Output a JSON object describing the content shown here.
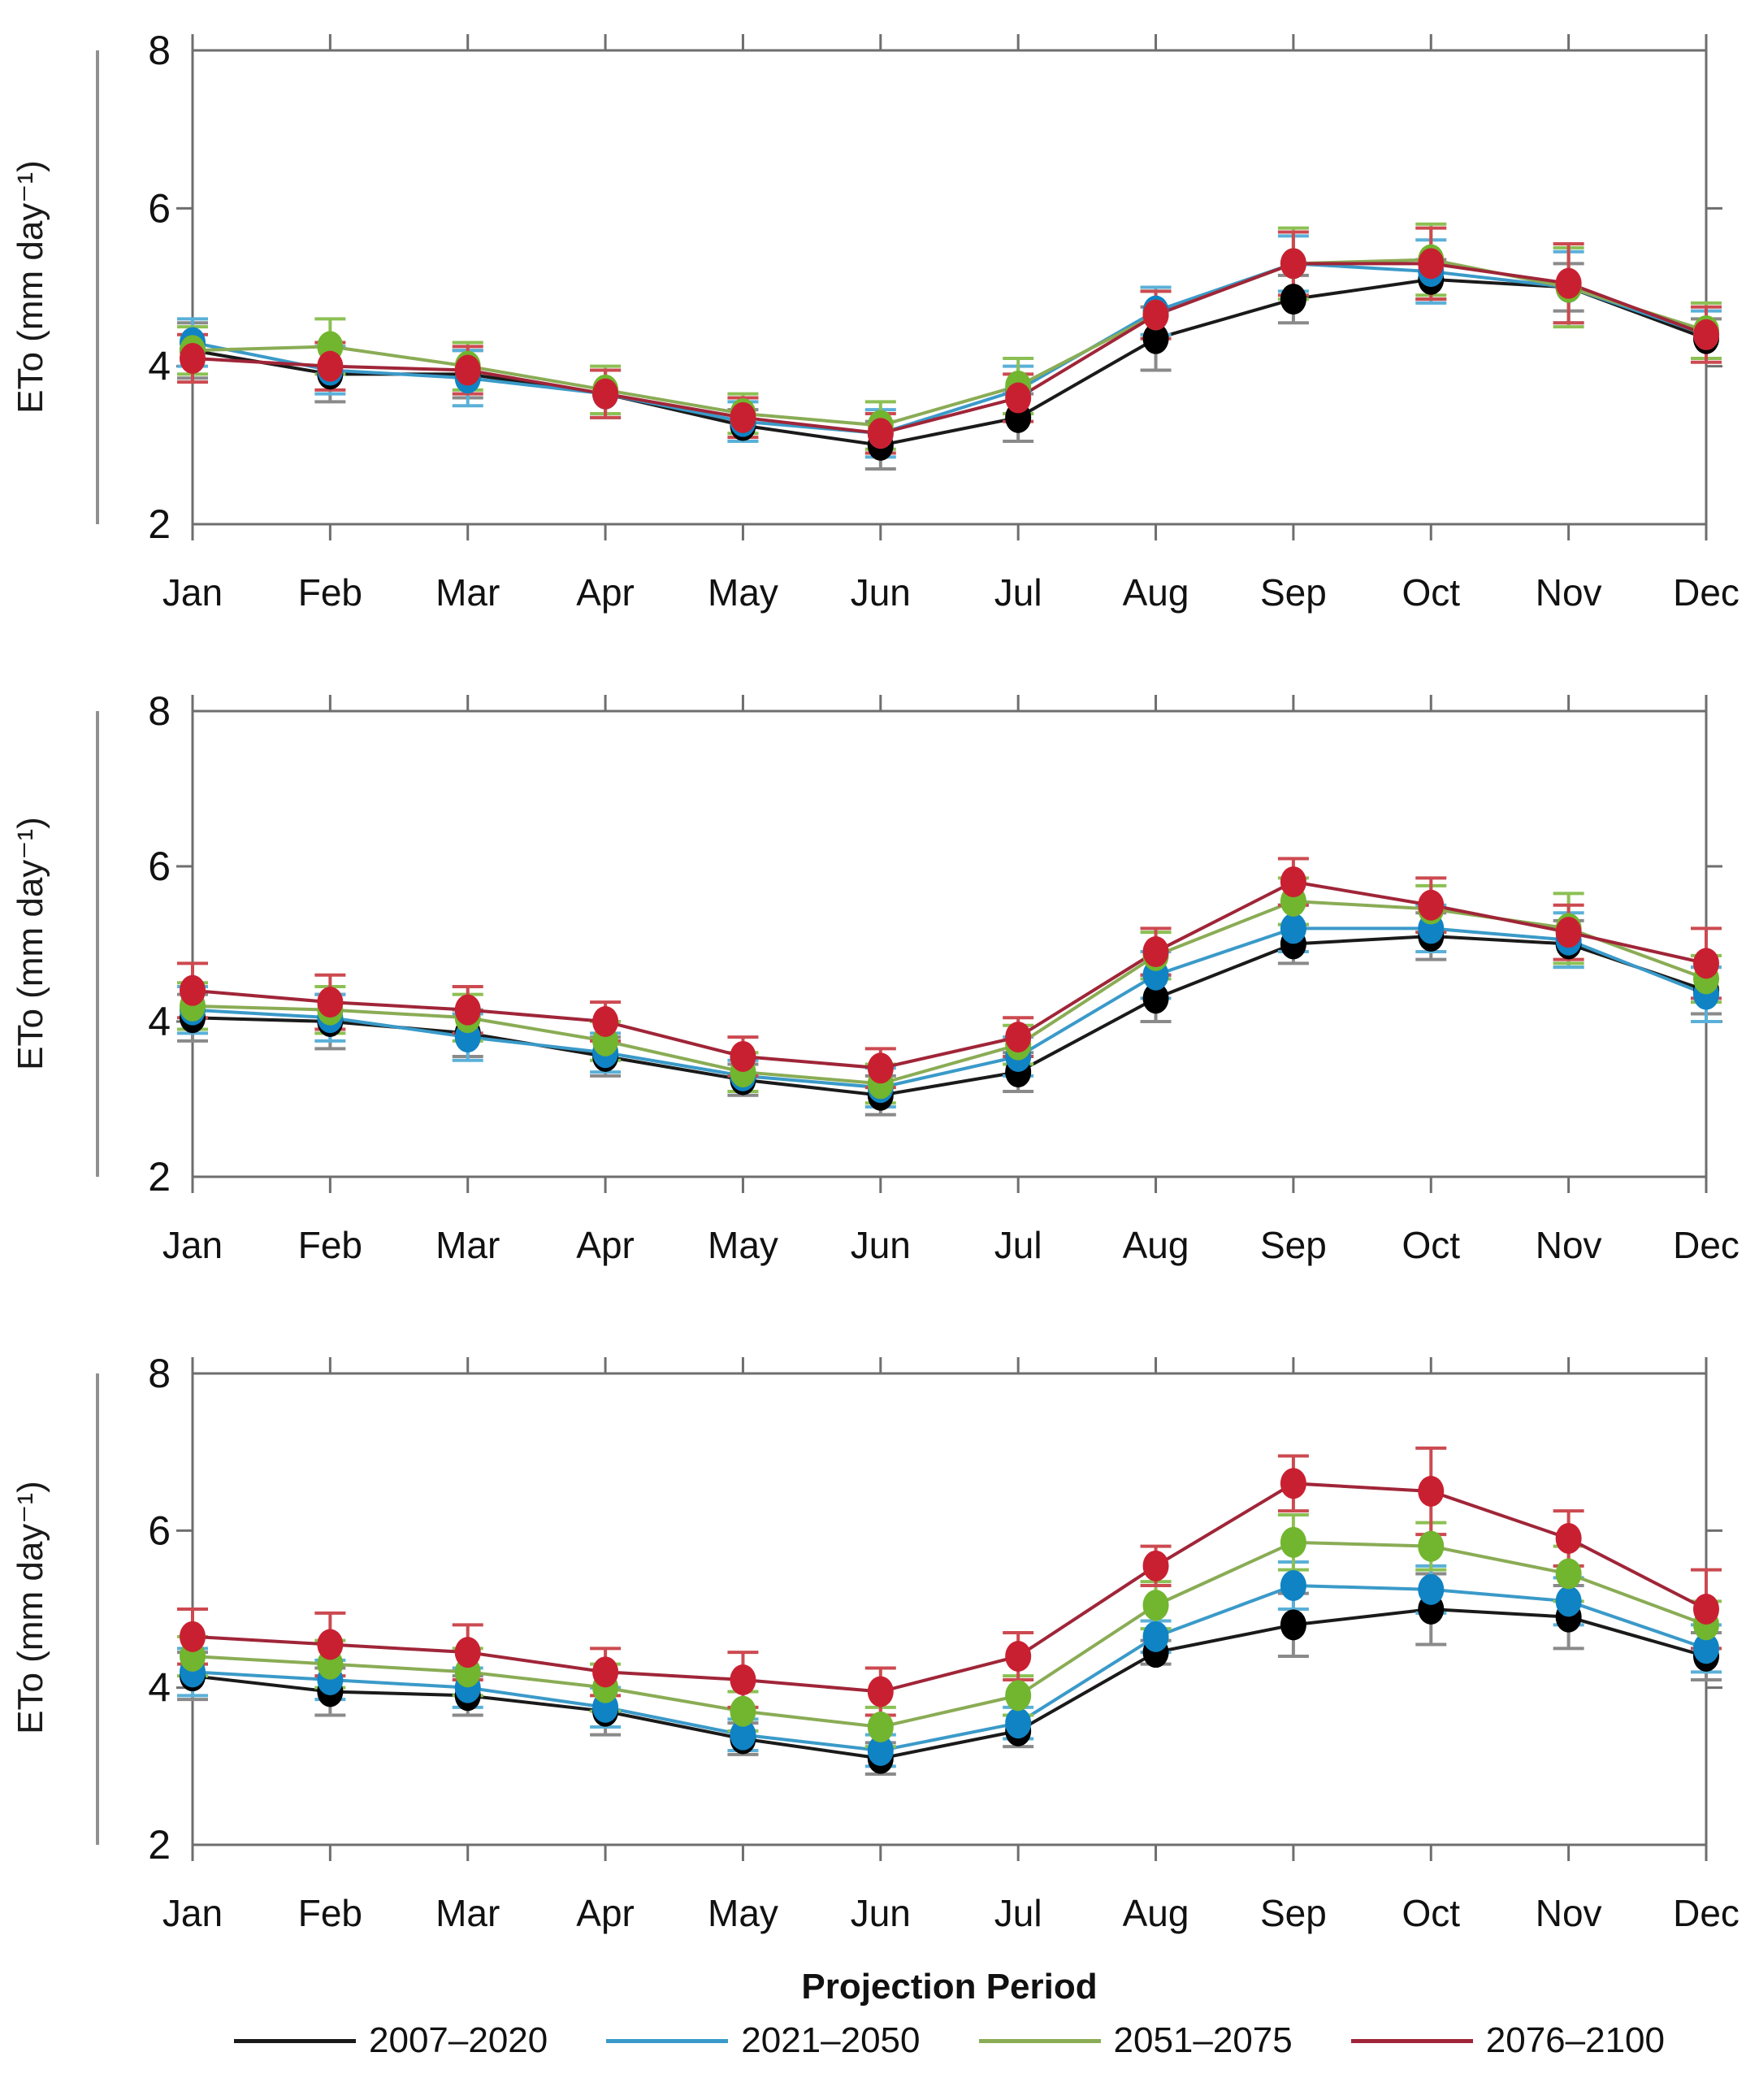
{
  "figure": {
    "ylabel": "ETo (mm day⁻¹)",
    "months": [
      "Jan",
      "Feb",
      "Mar",
      "Apr",
      "May",
      "Jun",
      "Jul",
      "Aug",
      "Sep",
      "Oct",
      "Nov",
      "Dec"
    ],
    "yticks": [
      2,
      4,
      6,
      8
    ],
    "ylim": [
      2,
      8
    ]
  },
  "footer": {
    "title": "Projection Period"
  },
  "legend": {
    "items": [
      {
        "label": "2007–2020",
        "color": "#1a1a1a"
      },
      {
        "label": "2021–2050",
        "color": "#3a9ac9"
      },
      {
        "label": "2051–2075",
        "color": "#8aac55"
      },
      {
        "label": "2076–2100",
        "color": "#a02538"
      }
    ]
  },
  "chart_data": [
    {
      "type": "line",
      "panel": "top",
      "categories": [
        "Jan",
        "Feb",
        "Mar",
        "Apr",
        "May",
        "Jun",
        "Jul",
        "Aug",
        "Sep",
        "Oct",
        "Nov",
        "Dec"
      ],
      "ylabel": "ETo (mm day⁻¹)",
      "ylim": [
        2,
        8
      ],
      "yticks": [
        2,
        4,
        6,
        8
      ],
      "grid": false,
      "series": [
        {
          "name": "2007–2020",
          "line_color": "#1a1a1a",
          "marker_color": "#000000",
          "error_color": "#8a8a8a",
          "values": [
            4.2,
            3.9,
            3.9,
            3.65,
            3.25,
            3.0,
            3.35,
            4.35,
            4.85,
            5.1,
            5.0,
            4.35
          ],
          "errors": [
            0.35,
            0.35,
            0.3,
            0.3,
            0.2,
            0.3,
            0.3,
            0.4,
            0.3,
            0.25,
            0.3,
            0.25
          ]
        },
        {
          "name": "2021–2050",
          "line_color": "#3a9ac9",
          "marker_color": "#0f83c4",
          "error_color": "#5ab0d8",
          "values": [
            4.3,
            3.95,
            3.85,
            3.65,
            3.3,
            3.15,
            3.7,
            4.7,
            5.3,
            5.2,
            5.0,
            4.4
          ],
          "errors": [
            0.3,
            0.3,
            0.35,
            0.3,
            0.25,
            0.3,
            0.3,
            0.3,
            0.35,
            0.4,
            0.45,
            0.3
          ]
        },
        {
          "name": "2051–2075",
          "line_color": "#8aac55",
          "marker_color": "#72b52f",
          "error_color": "#8cc054",
          "values": [
            4.2,
            4.25,
            4.0,
            3.7,
            3.4,
            3.25,
            3.75,
            4.65,
            5.3,
            5.35,
            5.0,
            4.45
          ],
          "errors": [
            0.3,
            0.35,
            0.3,
            0.3,
            0.25,
            0.3,
            0.35,
            0.3,
            0.45,
            0.45,
            0.5,
            0.35
          ]
        },
        {
          "name": "2076–2100",
          "line_color": "#a02538",
          "marker_color": "#c92031",
          "error_color": "#cc4a50",
          "values": [
            4.1,
            4.0,
            3.95,
            3.65,
            3.35,
            3.15,
            3.6,
            4.65,
            5.3,
            5.3,
            5.05,
            4.4
          ],
          "errors": [
            0.3,
            0.3,
            0.3,
            0.3,
            0.25,
            0.25,
            0.3,
            0.3,
            0.4,
            0.45,
            0.5,
            0.35
          ]
        }
      ]
    },
    {
      "type": "line",
      "panel": "middle",
      "categories": [
        "Jan",
        "Feb",
        "Mar",
        "Apr",
        "May",
        "Jun",
        "Jul",
        "Aug",
        "Sep",
        "Oct",
        "Nov",
        "Dec"
      ],
      "ylabel": "ETo (mm day⁻¹)",
      "ylim": [
        2,
        8
      ],
      "yticks": [
        2,
        4,
        6,
        8
      ],
      "grid": false,
      "series": [
        {
          "name": "2007–2020",
          "line_color": "#1a1a1a",
          "marker_color": "#000000",
          "error_color": "#8a8a8a",
          "values": [
            4.05,
            4.0,
            3.85,
            3.55,
            3.25,
            3.05,
            3.35,
            4.3,
            5.0,
            5.1,
            5.0,
            4.4
          ],
          "errors": [
            0.3,
            0.35,
            0.3,
            0.25,
            0.2,
            0.25,
            0.25,
            0.3,
            0.25,
            0.3,
            0.3,
            0.3
          ]
        },
        {
          "name": "2021–2050",
          "line_color": "#3a9ac9",
          "marker_color": "#0f83c4",
          "error_color": "#5ab0d8",
          "values": [
            4.15,
            4.05,
            3.8,
            3.6,
            3.3,
            3.15,
            3.55,
            4.6,
            5.2,
            5.2,
            5.05,
            4.35
          ],
          "errors": [
            0.3,
            0.3,
            0.3,
            0.25,
            0.2,
            0.25,
            0.25,
            0.3,
            0.3,
            0.3,
            0.35,
            0.35
          ]
        },
        {
          "name": "2051–2075",
          "line_color": "#8aac55",
          "marker_color": "#72b52f",
          "error_color": "#8cc054",
          "values": [
            4.2,
            4.15,
            4.05,
            3.75,
            3.35,
            3.2,
            3.7,
            4.85,
            5.55,
            5.45,
            5.2,
            4.55
          ],
          "errors": [
            0.3,
            0.3,
            0.3,
            0.25,
            0.25,
            0.25,
            0.25,
            0.3,
            0.3,
            0.3,
            0.45,
            0.3
          ]
        },
        {
          "name": "2076–2100",
          "line_color": "#a02538",
          "marker_color": "#c92031",
          "error_color": "#cc4a50",
          "values": [
            4.4,
            4.25,
            4.15,
            4.0,
            3.55,
            3.4,
            3.8,
            4.9,
            5.8,
            5.5,
            5.15,
            4.75
          ],
          "errors": [
            0.35,
            0.35,
            0.3,
            0.25,
            0.25,
            0.25,
            0.25,
            0.3,
            0.3,
            0.35,
            0.35,
            0.45
          ]
        }
      ]
    },
    {
      "type": "line",
      "panel": "bottom",
      "categories": [
        "Jan",
        "Feb",
        "Mar",
        "Apr",
        "May",
        "Jun",
        "Jul",
        "Aug",
        "Sep",
        "Oct",
        "Nov",
        "Dec"
      ],
      "ylabel": "ETo (mm day⁻¹)",
      "ylim": [
        2,
        8
      ],
      "yticks": [
        2,
        4,
        6,
        8
      ],
      "grid": false,
      "series": [
        {
          "name": "2007–2020",
          "line_color": "#1a1a1a",
          "marker_color": "#000000",
          "error_color": "#8a8a8a",
          "values": [
            4.15,
            3.95,
            3.9,
            3.7,
            3.35,
            3.1,
            3.45,
            4.45,
            4.8,
            5.0,
            4.9,
            4.4
          ],
          "errors": [
            0.3,
            0.3,
            0.25,
            0.3,
            0.2,
            0.2,
            0.2,
            0.15,
            0.4,
            0.45,
            0.4,
            0.3
          ]
        },
        {
          "name": "2021–2050",
          "line_color": "#3a9ac9",
          "marker_color": "#0f83c4",
          "error_color": "#5ab0d8",
          "values": [
            4.2,
            4.1,
            4.0,
            3.75,
            3.4,
            3.2,
            3.55,
            4.65,
            5.3,
            5.25,
            5.1,
            4.5
          ],
          "errors": [
            0.3,
            0.25,
            0.25,
            0.25,
            0.2,
            0.2,
            0.2,
            0.2,
            0.3,
            0.3,
            0.3,
            0.3
          ]
        },
        {
          "name": "2051–2075",
          "line_color": "#8aac55",
          "marker_color": "#72b52f",
          "error_color": "#8cc054",
          "values": [
            4.4,
            4.3,
            4.2,
            4.0,
            3.7,
            3.5,
            3.9,
            5.05,
            5.85,
            5.8,
            5.45,
            4.8
          ],
          "errors": [
            0.25,
            0.3,
            0.3,
            0.3,
            0.25,
            0.25,
            0.25,
            0.3,
            0.35,
            0.3,
            0.35,
            0.3
          ]
        },
        {
          "name": "2076–2100",
          "line_color": "#a02538",
          "marker_color": "#c92031",
          "error_color": "#cc4a50",
          "values": [
            4.65,
            4.55,
            4.45,
            4.2,
            4.1,
            3.95,
            4.4,
            5.55,
            6.6,
            6.5,
            5.9,
            5.0
          ],
          "errors": [
            0.35,
            0.4,
            0.35,
            0.3,
            0.35,
            0.3,
            0.3,
            0.25,
            0.35,
            0.55,
            0.35,
            0.5
          ]
        }
      ]
    }
  ]
}
